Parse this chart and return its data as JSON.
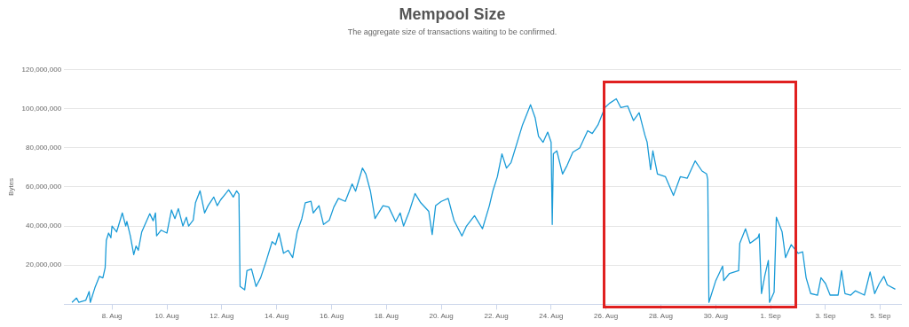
{
  "chart_data": {
    "type": "line",
    "title": "Mempool Size",
    "subtitle": "The aggregate size of transactions waiting to be confirmed.",
    "ylabel": "Bytes",
    "xlim": [
      "--08-06T06:00",
      "--09-05T18:00"
    ],
    "xticks": [
      {
        "value": "--08-08",
        "label": "8. Aug"
      },
      {
        "value": "--08-10",
        "label": "10. Aug"
      },
      {
        "value": "--08-12",
        "label": "12. Aug"
      },
      {
        "value": "--08-14",
        "label": "14. Aug"
      },
      {
        "value": "--08-16",
        "label": "16. Aug"
      },
      {
        "value": "--08-18",
        "label": "18. Aug"
      },
      {
        "value": "--08-20",
        "label": "20. Aug"
      },
      {
        "value": "--08-22",
        "label": "22. Aug"
      },
      {
        "value": "--08-24",
        "label": "24. Aug"
      },
      {
        "value": "--08-26",
        "label": "26. Aug"
      },
      {
        "value": "--08-28",
        "label": "28. Aug"
      },
      {
        "value": "--08-30",
        "label": "30. Aug"
      },
      {
        "value": "--09-01",
        "label": "1. Sep"
      },
      {
        "value": "--09-03",
        "label": "3. Sep"
      },
      {
        "value": "--09-05",
        "label": "5. Sep"
      }
    ],
    "ylim": [
      0,
      120000000
    ],
    "yticks": [
      {
        "value": 20000000,
        "label": "20,000,000"
      },
      {
        "value": 40000000,
        "label": "40,000,000"
      },
      {
        "value": 60000000,
        "label": "60,000,000"
      },
      {
        "value": 80000000,
        "label": "80,000,000"
      },
      {
        "value": 100000000,
        "label": "100,000,000"
      },
      {
        "value": 120000000,
        "label": "120,000,000"
      }
    ],
    "grid": "y",
    "legend": false,
    "marker": "none",
    "line_style": "solid",
    "x": [
      "--08-06T13:00",
      "--08-06T17:00",
      "--08-06T19:00",
      "--08-07T01:00",
      "--08-07T04:00",
      "--08-07T05:00",
      "--08-07T09:00",
      "--08-07T13:00",
      "--08-07T16:00",
      "--08-07T18:00",
      "--08-07T19:00",
      "--08-07T21:00",
      "--08-07T23:00",
      "--08-08T00:00",
      "--08-08T04:00",
      "--08-08T06:00",
      "--08-08T09:00",
      "--08-08T12:00",
      "--08-08T13:00",
      "--08-08T16:00",
      "--08-08T19:00",
      "--08-08T21:00",
      "--08-08T23:00",
      "--08-09T02:00",
      "--08-09T06:00",
      "--08-09T09:00",
      "--08-09T12:00",
      "--08-09T14:00",
      "--08-09T15:00",
      "--08-09T19:00",
      "--08-10T00:00",
      "--08-10T04:00",
      "--08-10T07:00",
      "--08-10T10:00",
      "--08-10T14:00",
      "--08-10T17:00",
      "--08-10T19:00",
      "--08-10T23:00",
      "--08-11T01:00",
      "--08-11T05:00",
      "--08-11T09:00",
      "--08-11T12:00",
      "--08-11T17:00",
      "--08-11T20:00",
      "--08-11T23:00",
      "--08-12T03:00",
      "--08-12T06:00",
      "--08-12T10:00",
      "--08-12T13:00",
      "--08-12T15:00",
      "--08-12T16:00",
      "--08-12T20:00",
      "--08-12T22:00",
      "--08-13T02:00",
      "--08-13T06:00",
      "--08-13T10:00",
      "--08-13T15:00",
      "--08-13T20:00",
      "--08-13T23:00",
      "--08-14T02:00",
      "--08-14T06:00",
      "--08-14T10:00",
      "--08-14T14:00",
      "--08-14T18:00",
      "--08-14T22:00",
      "--08-15T01:00",
      "--08-15T06:00",
      "--08-15T08:00",
      "--08-15T13:00",
      "--08-15T17:00",
      "--08-15T22:00",
      "--08-16T02:00",
      "--08-16T06:00",
      "--08-16T12:00",
      "--08-16T18:00",
      "--08-16T21:00",
      "--08-17T03:00",
      "--08-17T06:00",
      "--08-17T10:00",
      "--08-17T14:00",
      "--08-17T21:00",
      "--08-18T02:00",
      "--08-18T08:00",
      "--08-18T12:00",
      "--08-18T15:00",
      "--08-18T20:00",
      "--08-19T01:00",
      "--08-19T06:00",
      "--08-19T13:00",
      "--08-19T16:00",
      "--08-19T19:00",
      "--08-20T00:00",
      "--08-20T06:00",
      "--08-20T11:00",
      "--08-20T18:00",
      "--08-20T22:00",
      "--08-21T05:00",
      "--08-21T12:00",
      "--08-21T18:00",
      "--08-21T21:00",
      "--08-22T01:00",
      "--08-22T05:00",
      "--08-22T09:00",
      "--08-22T13:00",
      "--08-22T18:00",
      "--08-22T23:00",
      "--08-23T06:00",
      "--08-23T10:00",
      "--08-23T13:00",
      "--08-23T17:00",
      "--08-23T21:00",
      "--08-24T00:00",
      "--08-24T01:00",
      "--08-24T02:00",
      "--08-24T05:00",
      "--08-24T10:00",
      "--08-24T14:00",
      "--08-24T19:00",
      "--08-25T01:00",
      "--08-25T08:00",
      "--08-25T12:00",
      "--08-25T17:00",
      "--08-25T23:00",
      "--08-26T03:00",
      "--08-26T09:00",
      "--08-26T13:00",
      "--08-26T19:00",
      "--08-27T00:00",
      "--08-27T05:00",
      "--08-27T10:00",
      "--08-27T12:00",
      "--08-27T15:00",
      "--08-27T17:00",
      "--08-27T21:00",
      "--08-28T04:00",
      "--08-28T11:00",
      "--08-28T17:00",
      "--08-28T23:00",
      "--08-29T06:00",
      "--08-29T12:00",
      "--08-29T16:00",
      "--08-29T17:00",
      "--08-29T18:00",
      "--08-30T00:00",
      "--08-30T06:00",
      "--08-30T07:00",
      "--08-30T12:00",
      "--08-30T20:00",
      "--08-30T21:00",
      "--08-31T02:00",
      "--08-31T06:00",
      "--08-31T13:00",
      "--08-31T14:00",
      "--08-31T16:00",
      "--08-31T19:00",
      "--08-31T22:00",
      "--08-31T23:00",
      "--09-01T03:00",
      "--09-01T05:00",
      "--09-01T10:00",
      "--09-01T13:00",
      "--09-01T18:00",
      "--09-02T00:00",
      "--09-02T04:00",
      "--09-02T07:00",
      "--09-02T11:00",
      "--09-02T17:00",
      "--09-02T20:00",
      "--09-03T00:00",
      "--09-03T04:00",
      "--09-03T11:00",
      "--09-03T14:00",
      "--09-03T17:00",
      "--09-03T22:00",
      "--09-04T02:00",
      "--09-04T10:00",
      "--09-04T15:00",
      "--09-04T19:00",
      "--09-04T23:00",
      "--09-05T03:00",
      "--09-05T06:00",
      "--09-05T13:00"
    ],
    "series": [
      {
        "color": "#1a9bd7",
        "values": [
          1000000,
          3200000,
          1000000,
          2000000,
          6500000,
          1000000,
          8400000,
          14300000,
          13500000,
          18700000,
          32700000,
          36400000,
          34000000,
          40000000,
          37000000,
          40800000,
          46700000,
          40000000,
          42300000,
          35000000,
          25400000,
          29800000,
          27600000,
          37000000,
          42300000,
          46300000,
          42700000,
          46700000,
          35000000,
          37900000,
          36400000,
          48200000,
          43800000,
          48900000,
          40000000,
          44500000,
          40000000,
          43000000,
          51900000,
          58000000,
          46700000,
          50400000,
          54800000,
          50400000,
          53400000,
          56300000,
          58500000,
          54800000,
          58000000,
          56300000,
          9100000,
          7400000,
          17200000,
          18000000,
          9100000,
          13600000,
          22400000,
          32000000,
          30500000,
          36400000,
          26100000,
          27600000,
          23900000,
          37100000,
          43800000,
          51900000,
          52600000,
          46700000,
          50400000,
          40800000,
          43000000,
          49700000,
          54100000,
          52600000,
          61500000,
          57800000,
          69600000,
          66600000,
          57800000,
          43800000,
          50400000,
          49700000,
          42300000,
          46700000,
          40000000,
          47500000,
          56600000,
          51900000,
          47500000,
          35700000,
          50400000,
          52600000,
          54100000,
          43000000,
          34900000,
          40000000,
          45300000,
          38600000,
          50400000,
          57800000,
          65200000,
          76900000,
          69600000,
          72500000,
          82100000,
          91700000,
          102000000,
          95400000,
          85800000,
          82800000,
          88000000,
          82800000,
          40800000,
          76900000,
          78400000,
          66600000,
          71000000,
          77700000,
          79900000,
          88700000,
          87300000,
          91700000,
          100500000,
          102700000,
          105000000,
          100500000,
          101300000,
          93900000,
          97900000,
          86500000,
          82800000,
          68800000,
          78400000,
          66600000,
          65200000,
          55600000,
          65200000,
          64400000,
          73300000,
          68100000,
          66600000,
          63700000,
          1000000,
          12100000,
          19500000,
          12100000,
          15800000,
          17200000,
          31200000,
          38600000,
          31200000,
          34200000,
          36000000,
          5500000,
          15000000,
          22400000,
          1000000,
          6200000,
          44500000,
          37100000,
          23900000,
          30500000,
          26100000,
          26800000,
          13600000,
          5500000,
          4700000,
          13600000,
          10600000,
          4700000,
          4700000,
          17200000,
          5500000,
          4700000,
          6900000,
          4700000,
          16500000,
          5500000,
          10600000,
          14300000,
          9900000,
          7700000
        ]
      }
    ]
  }
}
